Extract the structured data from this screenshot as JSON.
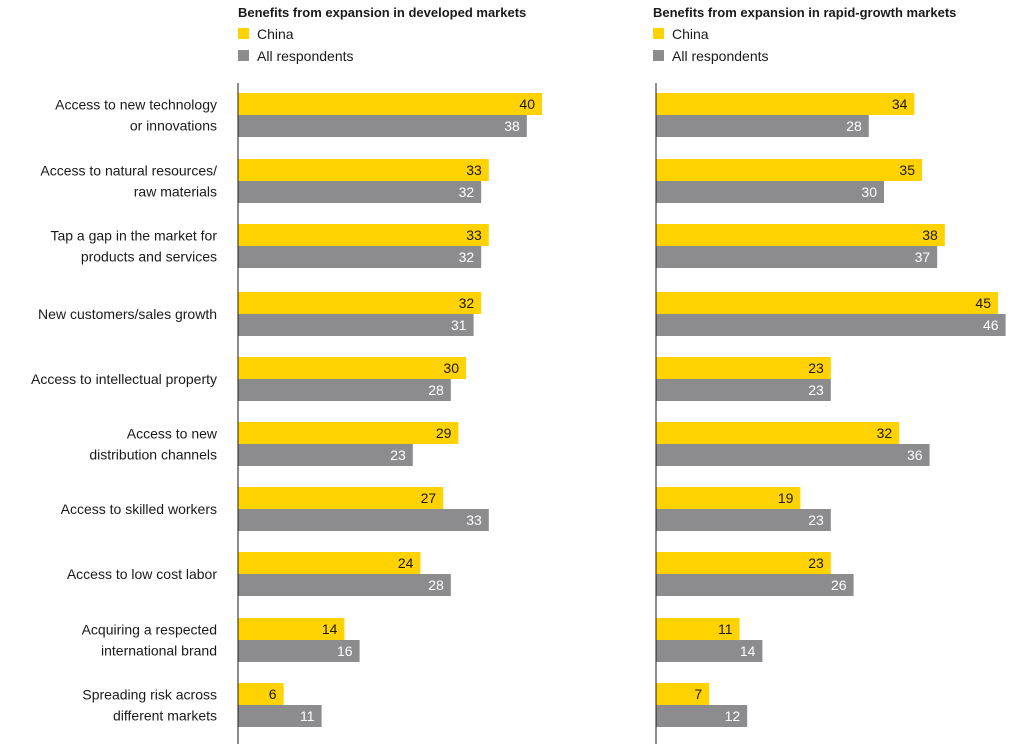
{
  "colors": {
    "china": "#ffd200",
    "all_respondents": "#8c8c8f",
    "text": "#1a1a1a",
    "value_on_gray": "#ffffff",
    "axis": "#1a1a1a"
  },
  "categories": [
    [
      "Access to new technology",
      "or innovations"
    ],
    [
      "Access to natural resources/",
      "raw materials"
    ],
    [
      "Tap a gap in the market for",
      "products and services"
    ],
    [
      "New customers/sales growth"
    ],
    [
      "Access to intellectual property"
    ],
    [
      "Access to new",
      "distribution channels"
    ],
    [
      "Access to skilled workers"
    ],
    [
      "Access to low cost labor"
    ],
    [
      "Acquiring a respected",
      "international brand"
    ],
    [
      "Spreading risk across",
      "different markets"
    ]
  ],
  "chart_data": [
    {
      "type": "bar",
      "orientation": "horizontal",
      "title": "Benefits from expansion in developed markets",
      "legend": "top-left",
      "categories": [
        "Access to new technology or innovations",
        "Access to natural resources/ raw materials",
        "Tap a gap in the market for products and services",
        "New customers/sales growth",
        "Access to intellectual property",
        "Access to new distribution channels",
        "Access to skilled workers",
        "Access to low cost labor",
        "Acquiring a respected international brand",
        "Spreading risk across different markets"
      ],
      "series": [
        {
          "name": "China",
          "values": [
            40,
            33,
            33,
            32,
            30,
            29,
            27,
            24,
            14,
            6
          ]
        },
        {
          "name": "All respondents",
          "values": [
            38,
            32,
            32,
            31,
            28,
            23,
            33,
            28,
            16,
            11
          ]
        }
      ],
      "xlim": [
        0,
        46
      ],
      "grid": false
    },
    {
      "type": "bar",
      "orientation": "horizontal",
      "title": "Benefits from expansion in rapid-growth markets",
      "legend": "top-left",
      "categories": [
        "Access to new technology or innovations",
        "Access to natural resources/ raw materials",
        "Tap a gap in the market for products and services",
        "New customers/sales growth",
        "Access to intellectual property",
        "Access to new distribution channels",
        "Access to skilled workers",
        "Access to low cost labor",
        "Acquiring a respected international brand",
        "Spreading risk across different markets"
      ],
      "series": [
        {
          "name": "China",
          "values": [
            34,
            35,
            38,
            45,
            23,
            32,
            19,
            23,
            11,
            7
          ]
        },
        {
          "name": "All respondents",
          "values": [
            28,
            30,
            37,
            46,
            23,
            36,
            23,
            26,
            14,
            12
          ]
        }
      ],
      "xlim": [
        0,
        46
      ],
      "grid": false
    }
  ]
}
